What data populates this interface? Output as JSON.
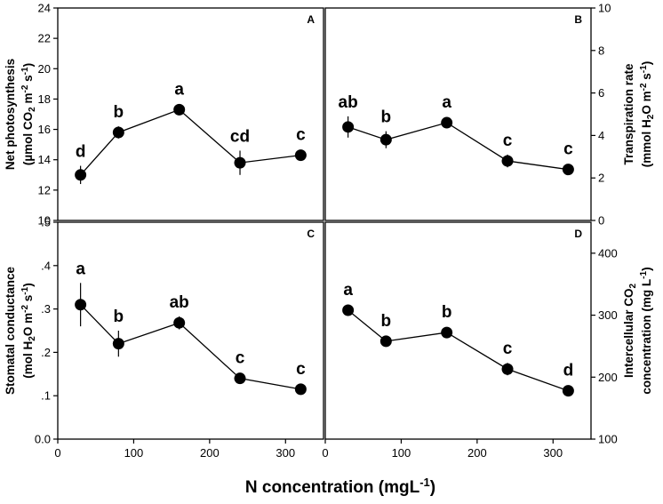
{
  "chart_data": {
    "type": "line",
    "x": [
      30,
      80,
      160,
      240,
      320
    ],
    "xlim": [
      0,
      350
    ],
    "xticks": [
      0,
      100,
      200,
      300
    ],
    "x_tick_labels": [
      "0",
      "100",
      "200",
      "300"
    ],
    "xlabel": {
      "text": "N concentration (mgL",
      "sup": "-1",
      "close": ")"
    },
    "panels": [
      {
        "id": "A",
        "label": "A",
        "axis_side": "left",
        "ylim": [
          10,
          24
        ],
        "yticks": [
          10,
          12,
          14,
          16,
          18,
          20,
          22,
          24
        ],
        "y_tick_labels": [
          "10",
          "12",
          "14",
          "16",
          "18",
          "20",
          "22",
          "24"
        ],
        "ylabel": {
          "line1": "Net photosynthesis",
          "line2_parts": [
            "(µmol CO",
            "2",
            " m",
            "-2",
            " s",
            "-1",
            ")"
          ]
        },
        "values": [
          13.0,
          15.8,
          17.3,
          13.8,
          14.3
        ],
        "errors": [
          0.6,
          0.4,
          0.3,
          0.8,
          0.2
        ],
        "letters": [
          "d",
          "b",
          "a",
          "cd",
          "c"
        ]
      },
      {
        "id": "B",
        "label": "B",
        "axis_side": "right",
        "ylim": [
          0,
          10
        ],
        "yticks": [
          0,
          2,
          4,
          6,
          8,
          10
        ],
        "y_tick_labels": [
          "0",
          "2",
          "4",
          "6",
          "8",
          "10"
        ],
        "ylabel": {
          "line1": "Transpiration rate",
          "line2_parts": [
            "(mmol H",
            "2",
            "O m",
            "-2",
            " s",
            "-1",
            ")"
          ]
        },
        "values": [
          4.4,
          3.8,
          4.6,
          2.8,
          2.4
        ],
        "errors": [
          0.5,
          0.4,
          0.2,
          0.3,
          0.15
        ],
        "letters": [
          "ab",
          "b",
          "a",
          "c",
          "c"
        ]
      },
      {
        "id": "C",
        "label": "C",
        "axis_side": "left",
        "ylim": [
          0,
          0.5
        ],
        "yticks": [
          0,
          0.1,
          0.2,
          0.3,
          0.4,
          0.5
        ],
        "y_tick_labels": [
          "0.0",
          ".1",
          ".2",
          ".3",
          ".4",
          ".5"
        ],
        "ylabel": {
          "line1": "Stomatal conductance",
          "line2_parts": [
            "(mol H",
            "2",
            "O m",
            "-2",
            " s",
            "-1",
            ")"
          ]
        },
        "values": [
          0.31,
          0.22,
          0.268,
          0.14,
          0.115
        ],
        "errors": [
          0.05,
          0.03,
          0.015,
          0.01,
          0.01
        ],
        "letters": [
          "a",
          "b",
          "ab",
          "c",
          "c"
        ]
      },
      {
        "id": "D",
        "label": "D",
        "axis_side": "right",
        "ylim": [
          100,
          450
        ],
        "yticks": [
          100,
          200,
          300,
          400
        ],
        "y_tick_labels": [
          "100",
          "200",
          "300",
          "400"
        ],
        "ylabel": {
          "line1_parts": [
            "Intercellular CO",
            "2"
          ],
          "line2_parts": [
            "concentration (mg L",
            "-1",
            ")"
          ]
        },
        "values": [
          308,
          258,
          272,
          213,
          178
        ],
        "errors": [
          5,
          8,
          4,
          10,
          4
        ],
        "letters": [
          "a",
          "b",
          "b",
          "c",
          "d"
        ]
      }
    ]
  }
}
